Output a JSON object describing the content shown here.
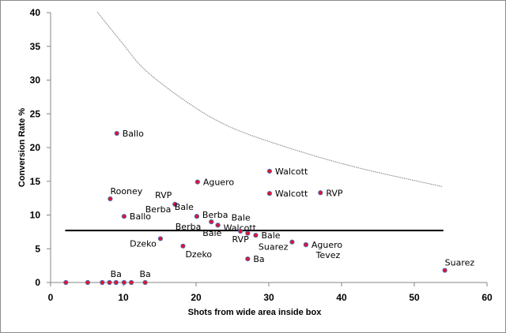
{
  "chart_data": {
    "type": "scatter",
    "title": "",
    "xlabel": "Shots from wide area inside box",
    "ylabel": "Conversion Rate %",
    "xlim": [
      0,
      60
    ],
    "ylim": [
      0,
      40
    ],
    "xticks": [
      "0",
      "10",
      "20",
      "30",
      "40",
      "50",
      "60"
    ],
    "yticks": [
      "0",
      "5",
      "10",
      "15",
      "20",
      "25",
      "30",
      "35",
      "40"
    ],
    "grid": false,
    "legend": "none",
    "marker_fill": "#e8102a",
    "marker_stroke": "#4f6bb0",
    "points": [
      {
        "x": 9.1,
        "y": 22.1,
        "label": "Ballo",
        "pos": "r"
      },
      {
        "x": 8.2,
        "y": 12.4,
        "label": "Rooney",
        "pos": "ar"
      },
      {
        "x": 10.1,
        "y": 9.8,
        "label": "Ballo",
        "pos": "r"
      },
      {
        "x": 17.1,
        "y": 11.6,
        "label": "RVP",
        "pos": "al"
      },
      {
        "x": 17.1,
        "y": 11.6,
        "label": "Berba",
        "pos": "bl"
      },
      {
        "x": 20.2,
        "y": 14.9,
        "label": "Aguero",
        "pos": "r"
      },
      {
        "x": 20.1,
        "y": 9.8,
        "label": "Bale",
        "pos": "al"
      },
      {
        "x": 20.1,
        "y": 9.8,
        "label": "Berba",
        "pos": "r"
      },
      {
        "x": 22.1,
        "y": 9.0,
        "label": "Berba",
        "pos": "l"
      },
      {
        "x": 22.1,
        "y": 9.0,
        "label": "Bale",
        "pos": "b"
      },
      {
        "x": 23.0,
        "y": 8.5,
        "label": "Bale",
        "pos": "a"
      },
      {
        "x": 23.0,
        "y": 8.5,
        "label": "Walcott",
        "pos": "r"
      },
      {
        "x": 30.1,
        "y": 16.5,
        "label": "Walcott",
        "pos": "r"
      },
      {
        "x": 30.1,
        "y": 13.2,
        "label": "Walcott",
        "pos": "r"
      },
      {
        "x": 37.1,
        "y": 13.3,
        "label": "RVP",
        "pos": "r"
      },
      {
        "x": 26.1,
        "y": 7.6,
        "label": "RVP",
        "pos": "b"
      },
      {
        "x": 27.1,
        "y": 7.3,
        "label": "",
        "pos": "r"
      },
      {
        "x": 28.2,
        "y": 7.0,
        "label": "Bale",
        "pos": "r"
      },
      {
        "x": 15.1,
        "y": 6.5,
        "label": "Dzeko",
        "pos": "bl"
      },
      {
        "x": 18.2,
        "y": 5.4,
        "label": "Dzeko",
        "pos": "br"
      },
      {
        "x": 27.1,
        "y": 3.5,
        "label": "Ba",
        "pos": "r"
      },
      {
        "x": 33.2,
        "y": 6.0,
        "label": "Suarez",
        "pos": "bl"
      },
      {
        "x": 35.1,
        "y": 5.6,
        "label": "Aguero",
        "pos": "r"
      },
      {
        "x": 35.1,
        "y": 5.6,
        "label": "Tevez",
        "pos": "b"
      },
      {
        "x": 54.2,
        "y": 1.8,
        "label": "Suarez",
        "pos": "ar"
      },
      {
        "x": 2.1,
        "y": 0,
        "label": "",
        "pos": "r"
      },
      {
        "x": 5.1,
        "y": 0,
        "label": "",
        "pos": "r"
      },
      {
        "x": 7.1,
        "y": 0,
        "label": "",
        "pos": "r"
      },
      {
        "x": 8.1,
        "y": 0,
        "label": "",
        "pos": "r"
      },
      {
        "x": 9.0,
        "y": 0,
        "label": "Ba",
        "pos": "a"
      },
      {
        "x": 10.1,
        "y": 0,
        "label": "",
        "pos": "r"
      },
      {
        "x": 11.1,
        "y": 0,
        "label": "",
        "pos": "r"
      },
      {
        "x": 13.0,
        "y": 0,
        "label": "Ba",
        "pos": "a"
      }
    ],
    "average_line": {
      "y": 7.7,
      "x_start": 2,
      "x_end": 54,
      "color": "#000000"
    },
    "trend_curve": {
      "style": "dotted",
      "color": "#808080",
      "points": [
        [
          6.4,
          40.1
        ],
        [
          9.7,
          35.7
        ],
        [
          12.9,
          31.6
        ],
        [
          18.4,
          27.0
        ],
        [
          23.8,
          23.5
        ],
        [
          30.3,
          20.8
        ],
        [
          41.2,
          17.3
        ],
        [
          53.9,
          14.2
        ]
      ]
    }
  }
}
